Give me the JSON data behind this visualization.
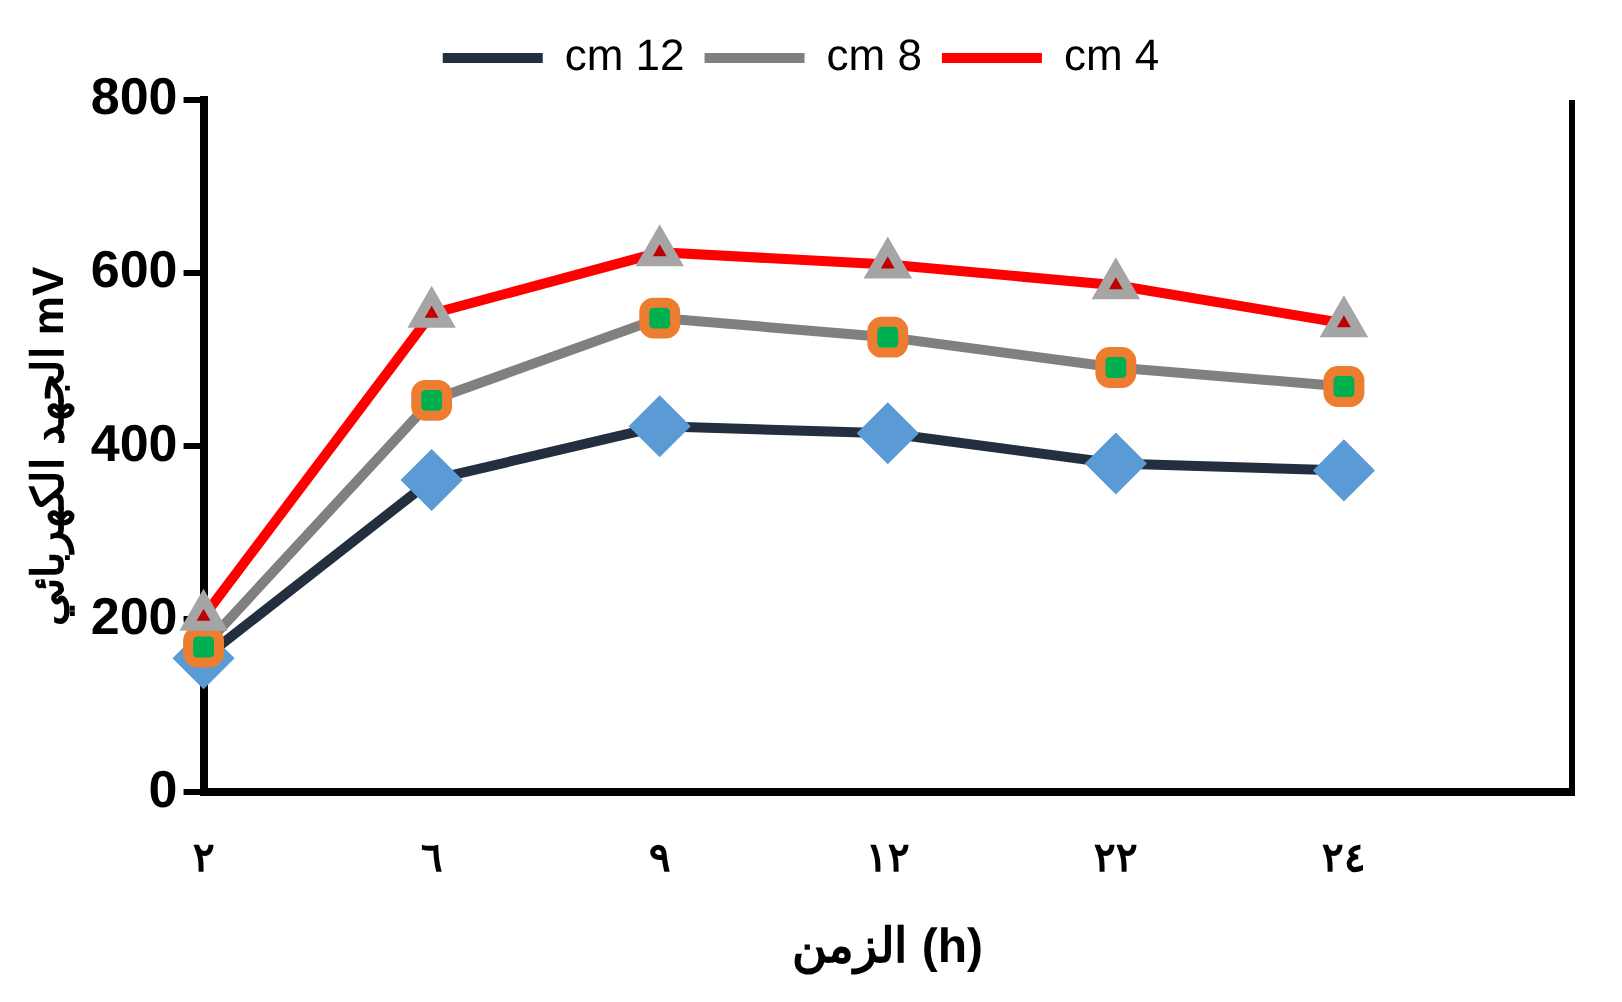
{
  "chart_data": {
    "type": "line",
    "xlabel": "الزمن (h)",
    "ylabel": "الجهد الكهربائي mV",
    "categories": [
      "٢",
      "٦",
      "٩",
      "١٢",
      "٢٢",
      "٢٤",
      null
    ],
    "series": [
      {
        "name": "cm 12",
        "color": "#232f3e",
        "marker": "diamond",
        "values": [
          155,
          361,
          423,
          415,
          380,
          372,
          null
        ]
      },
      {
        "name": "cm 8",
        "color": "#808080",
        "marker": "square",
        "values": [
          168,
          453,
          548,
          526,
          491,
          469,
          null
        ]
      },
      {
        "name": "cm 4",
        "color": "#ff0000",
        "marker": "triangle",
        "values": [
          203,
          553,
          624,
          610,
          586,
          542,
          null
        ]
      }
    ],
    "ylim": [
      0,
      800
    ],
    "yticks": [
      0,
      200,
      400,
      600,
      800
    ],
    "grid": false,
    "legend": "top"
  }
}
